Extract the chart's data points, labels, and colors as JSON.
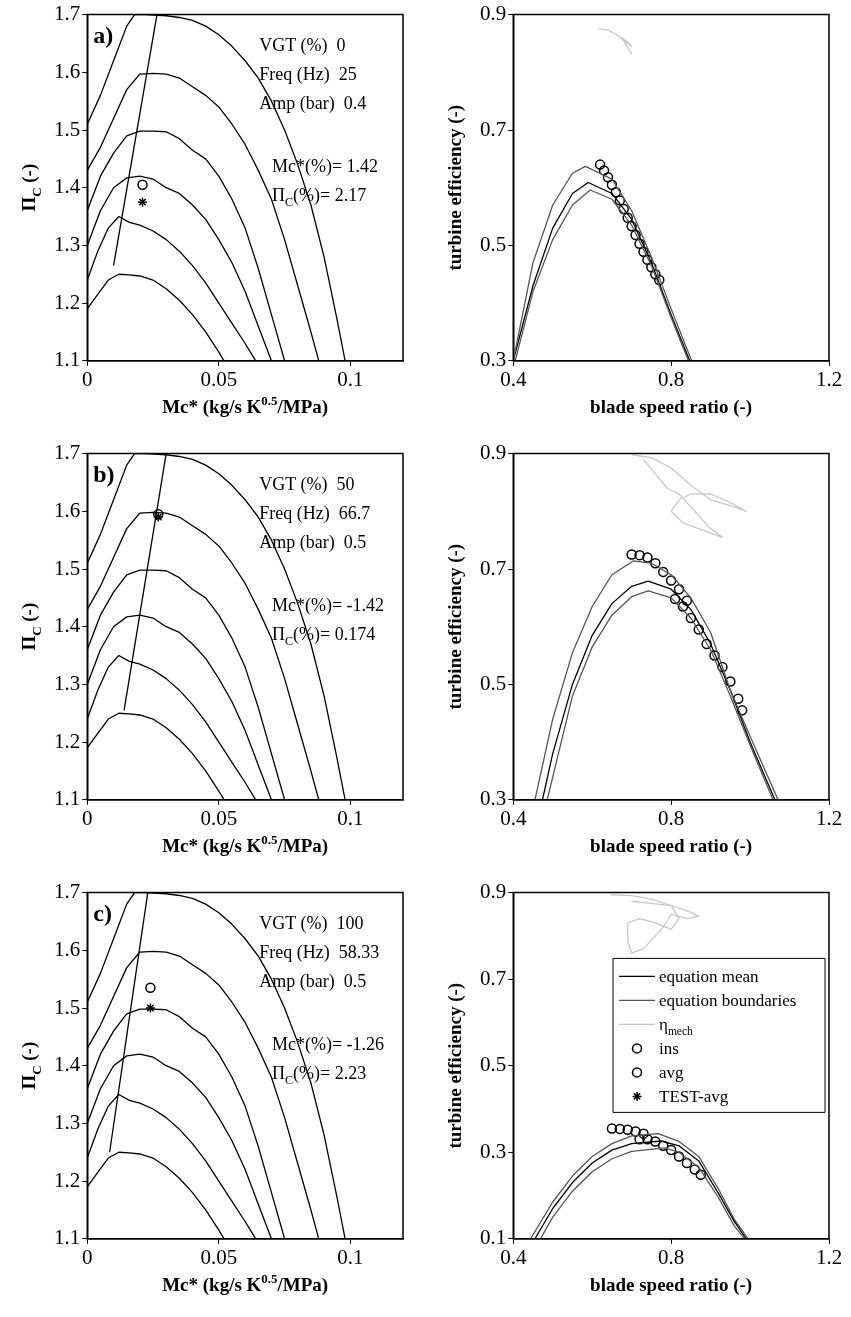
{
  "chart_data": [
    {
      "type": "line",
      "xlabel": "Mc* (kg/s K$^{0.5}$/MPa)",
      "ylabel": "Π$_{C}$ (-)",
      "xlim": [
        0,
        0.12
      ],
      "xticks": [
        0,
        0.05,
        0.1
      ],
      "ylim": [
        1.1,
        1.7
      ],
      "yticks": [
        1.1,
        1.2,
        1.3,
        1.4,
        1.5,
        1.6,
        1.7
      ],
      "grid": false,
      "marker": "none",
      "annotations": [
        "a)",
        "VGT (%)  0",
        "Freq (Hz)  25",
        "Amp (bar)  0.4",
        "Mc*(%)= 1.42",
        "Π$_{C}$(%)= 2.17"
      ],
      "series": [
        {
          "color": "#000000",
          "x": [
            0,
            0.004,
            0.008,
            0.012,
            0.016,
            0.02,
            0.025,
            0.03,
            0.035,
            0.04,
            0.045,
            0.05,
            0.052
          ],
          "values": [
            1.19,
            1.215,
            1.24,
            1.25,
            1.249,
            1.247,
            1.24,
            1.225,
            1.205,
            1.18,
            1.15,
            1.115,
            1.1
          ]
        },
        {
          "color": "#000000",
          "x": [
            0,
            0.004,
            0.008,
            0.012,
            0.016,
            0.02,
            0.025,
            0.03,
            0.035,
            0.04,
            0.045,
            0.05,
            0.055,
            0.06,
            0.064
          ],
          "values": [
            1.24,
            1.29,
            1.33,
            1.35,
            1.34,
            1.335,
            1.325,
            1.31,
            1.29,
            1.265,
            1.235,
            1.2,
            1.165,
            1.13,
            1.1
          ]
        },
        {
          "color": "#000000",
          "x": [
            0,
            0.005,
            0.01,
            0.015,
            0.02,
            0.025,
            0.03,
            0.035,
            0.04,
            0.045,
            0.05,
            0.055,
            0.06,
            0.065,
            0.07
          ],
          "values": [
            1.3,
            1.36,
            1.4,
            1.417,
            1.42,
            1.415,
            1.4,
            1.39,
            1.37,
            1.345,
            1.31,
            1.27,
            1.22,
            1.16,
            1.1
          ]
        },
        {
          "color": "#000000",
          "x": [
            0,
            0.005,
            0.01,
            0.015,
            0.02,
            0.025,
            0.03,
            0.035,
            0.04,
            0.045,
            0.05,
            0.055,
            0.06,
            0.065,
            0.07,
            0.075
          ],
          "values": [
            1.36,
            1.42,
            1.46,
            1.49,
            1.498,
            1.498,
            1.497,
            1.485,
            1.465,
            1.45,
            1.42,
            1.38,
            1.33,
            1.26,
            1.18,
            1.1
          ]
        },
        {
          "color": "#000000",
          "x": [
            0,
            0.005,
            0.01,
            0.015,
            0.02,
            0.025,
            0.03,
            0.035,
            0.04,
            0.045,
            0.05,
            0.055,
            0.06,
            0.065,
            0.07,
            0.075,
            0.08,
            0.085,
            0.088
          ],
          "values": [
            1.43,
            1.47,
            1.52,
            1.57,
            1.597,
            1.598,
            1.597,
            1.59,
            1.575,
            1.56,
            1.54,
            1.51,
            1.475,
            1.43,
            1.38,
            1.31,
            1.23,
            1.15,
            1.1
          ]
        },
        {
          "color": "#000000",
          "x": [
            0,
            0.005,
            0.01,
            0.015,
            0.018,
            0.022,
            0.03,
            0.035,
            0.04,
            0.045,
            0.05,
            0.055,
            0.06,
            0.065,
            0.07,
            0.075,
            0.08,
            0.085,
            0.09,
            0.095,
            0.098
          ],
          "values": [
            1.51,
            1.56,
            1.62,
            1.68,
            1.7,
            1.7,
            1.698,
            1.695,
            1.69,
            1.68,
            1.665,
            1.645,
            1.62,
            1.59,
            1.55,
            1.5,
            1.44,
            1.37,
            1.28,
            1.17,
            1.1
          ]
        },
        {
          "color": "#000000",
          "x": [
            0.01,
            0.0265
          ],
          "values": [
            1.265,
            1.7
          ]
        },
        {
          "name": "avg",
          "type": "scatter",
          "marker": "circle",
          "color": "#000000",
          "x": [
            0.021
          ],
          "values": [
            1.405
          ]
        },
        {
          "name": "TEST-avg",
          "type": "scatter",
          "marker": "cross",
          "color": "#000000",
          "x": [
            0.021
          ],
          "values": [
            1.375
          ]
        }
      ]
    },
    {
      "type": "line",
      "xlabel": "blade speed ratio (-)",
      "ylabel": "turbine efficiency (-)",
      "xlim": [
        0.4,
        1.2
      ],
      "xticks": [
        0.4,
        0.8,
        1.2
      ],
      "ylim": [
        0.3,
        0.9
      ],
      "yticks": [
        0.3,
        0.5,
        0.7,
        0.9
      ],
      "grid": false,
      "marker": "none",
      "series": [
        {
          "color": "#555555",
          "x": [
            0.4,
            0.45,
            0.5,
            0.55,
            0.583,
            0.65,
            0.7,
            0.75,
            0.8,
            0.852
          ],
          "values": [
            0.3,
            0.47,
            0.57,
            0.625,
            0.637,
            0.615,
            0.56,
            0.48,
            0.39,
            0.3
          ]
        },
        {
          "color": "#555555",
          "x": [
            0.405,
            0.45,
            0.5,
            0.55,
            0.595,
            0.65,
            0.7,
            0.75,
            0.8,
            0.844
          ],
          "values": [
            0.3,
            0.42,
            0.51,
            0.57,
            0.596,
            0.58,
            0.535,
            0.465,
            0.375,
            0.3
          ]
        },
        {
          "color": "#000000",
          "x": [
            0.4,
            0.45,
            0.5,
            0.55,
            0.59,
            0.65,
            0.7,
            0.75,
            0.8,
            0.847
          ],
          "values": [
            0.3,
            0.43,
            0.53,
            0.59,
            0.609,
            0.59,
            0.545,
            0.47,
            0.38,
            0.3
          ]
        },
        {
          "color": "#c8c8c8",
          "x": [
            0.615,
            0.64,
            0.66,
            0.68,
            0.69,
            0.7,
            0.69,
            0.675,
            0.695,
            0.7
          ],
          "values": [
            0.876,
            0.873,
            0.866,
            0.855,
            0.85,
            0.845,
            0.852,
            0.86,
            0.838,
            0.832
          ]
        },
        {
          "type": "scatter",
          "marker": "circle",
          "color": "#000000",
          "x": [
            0.62,
            0.63,
            0.64,
            0.65,
            0.66,
            0.67,
            0.68,
            0.69,
            0.7,
            0.71,
            0.72,
            0.73,
            0.74,
            0.75,
            0.76,
            0.77
          ],
          "values": [
            0.64,
            0.63,
            0.618,
            0.605,
            0.592,
            0.578,
            0.563,
            0.548,
            0.533,
            0.518,
            0.503,
            0.489,
            0.475,
            0.462,
            0.45,
            0.44
          ]
        }
      ]
    },
    {
      "type": "line",
      "xlabel": "Mc* (kg/s K$^{0.5}$/MPa)",
      "ylabel": "Π$_{C}$ (-)",
      "xlim": [
        0,
        0.12
      ],
      "xticks": [
        0,
        0.05,
        0.1
      ],
      "ylim": [
        1.1,
        1.7
      ],
      "yticks": [
        1.1,
        1.2,
        1.3,
        1.4,
        1.5,
        1.6,
        1.7
      ],
      "grid": false,
      "marker": "none",
      "annotations": [
        "b)",
        "VGT (%)  50",
        "Freq (Hz)  66.7",
        "Amp (bar)  0.5",
        "Mc*(%)= -1.42",
        "Π$_{C}$(%)= 0.174"
      ],
      "series": [
        {
          "color": "#000000",
          "x": [
            0,
            0.004,
            0.008,
            0.012,
            0.016,
            0.02,
            0.025,
            0.03,
            0.035,
            0.04,
            0.045,
            0.05,
            0.052
          ],
          "values": [
            1.19,
            1.215,
            1.24,
            1.25,
            1.249,
            1.247,
            1.24,
            1.225,
            1.205,
            1.18,
            1.15,
            1.115,
            1.1
          ]
        },
        {
          "color": "#000000",
          "x": [
            0,
            0.004,
            0.008,
            0.012,
            0.016,
            0.02,
            0.025,
            0.03,
            0.035,
            0.04,
            0.045,
            0.05,
            0.055,
            0.06,
            0.064
          ],
          "values": [
            1.24,
            1.29,
            1.33,
            1.35,
            1.34,
            1.335,
            1.325,
            1.31,
            1.29,
            1.265,
            1.235,
            1.2,
            1.165,
            1.13,
            1.1
          ]
        },
        {
          "color": "#000000",
          "x": [
            0,
            0.005,
            0.01,
            0.015,
            0.02,
            0.025,
            0.03,
            0.035,
            0.04,
            0.045,
            0.05,
            0.055,
            0.06,
            0.065,
            0.07
          ],
          "values": [
            1.3,
            1.36,
            1.4,
            1.417,
            1.42,
            1.415,
            1.4,
            1.39,
            1.37,
            1.345,
            1.31,
            1.27,
            1.22,
            1.16,
            1.1
          ]
        },
        {
          "color": "#000000",
          "x": [
            0,
            0.005,
            0.01,
            0.015,
            0.02,
            0.025,
            0.03,
            0.035,
            0.04,
            0.045,
            0.05,
            0.055,
            0.06,
            0.065,
            0.07,
            0.075
          ],
          "values": [
            1.36,
            1.42,
            1.46,
            1.49,
            1.498,
            1.498,
            1.497,
            1.485,
            1.465,
            1.45,
            1.42,
            1.38,
            1.33,
            1.26,
            1.18,
            1.1
          ]
        },
        {
          "color": "#000000",
          "x": [
            0,
            0.005,
            0.01,
            0.015,
            0.02,
            0.025,
            0.03,
            0.035,
            0.04,
            0.045,
            0.05,
            0.055,
            0.06,
            0.065,
            0.07,
            0.075,
            0.08,
            0.085,
            0.088
          ],
          "values": [
            1.43,
            1.47,
            1.52,
            1.57,
            1.597,
            1.598,
            1.597,
            1.59,
            1.575,
            1.56,
            1.54,
            1.51,
            1.475,
            1.43,
            1.38,
            1.31,
            1.23,
            1.15,
            1.1
          ]
        },
        {
          "color": "#000000",
          "x": [
            0,
            0.005,
            0.01,
            0.015,
            0.018,
            0.022,
            0.03,
            0.035,
            0.04,
            0.045,
            0.05,
            0.055,
            0.06,
            0.065,
            0.07,
            0.075,
            0.08,
            0.085,
            0.09,
            0.095,
            0.098
          ],
          "values": [
            1.51,
            1.56,
            1.62,
            1.68,
            1.7,
            1.7,
            1.698,
            1.695,
            1.69,
            1.68,
            1.665,
            1.645,
            1.62,
            1.59,
            1.55,
            1.5,
            1.44,
            1.37,
            1.28,
            1.17,
            1.1
          ]
        },
        {
          "color": "#000000",
          "x": [
            0.014,
            0.03
          ],
          "values": [
            1.255,
            1.7
          ]
        },
        {
          "type": "scatter",
          "marker": "circle",
          "color": "#000000",
          "x": [
            0.027
          ],
          "values": [
            1.595
          ]
        },
        {
          "type": "scatter",
          "marker": "cross",
          "color": "#000000",
          "x": [
            0.027
          ],
          "values": [
            1.59
          ]
        }
      ]
    },
    {
      "type": "line",
      "xlabel": "blade speed ratio (-)",
      "ylabel": "turbine efficiency (-)",
      "xlim": [
        0.4,
        1.2
      ],
      "xticks": [
        0.4,
        0.8,
        1.2
      ],
      "ylim": [
        0.3,
        0.9
      ],
      "yticks": [
        0.3,
        0.5,
        0.7,
        0.9
      ],
      "grid": false,
      "marker": "none",
      "series": [
        {
          "color": "#555555",
          "x": [
            0.455,
            0.5,
            0.55,
            0.6,
            0.65,
            0.704,
            0.75,
            0.8,
            0.85,
            0.9,
            0.95,
            1.0,
            1.071
          ],
          "values": [
            0.3,
            0.44,
            0.555,
            0.635,
            0.69,
            0.714,
            0.71,
            0.69,
            0.65,
            0.59,
            0.49,
            0.41,
            0.3
          ]
        },
        {
          "color": "#555555",
          "x": [
            0.486,
            0.55,
            0.6,
            0.65,
            0.7,
            0.742,
            0.8,
            0.85,
            0.9,
            0.95,
            1.0,
            1.058
          ],
          "values": [
            0.3,
            0.48,
            0.565,
            0.62,
            0.652,
            0.662,
            0.65,
            0.615,
            0.56,
            0.48,
            0.395,
            0.3
          ]
        },
        {
          "color": "#000000",
          "x": [
            0.474,
            0.5,
            0.55,
            0.6,
            0.65,
            0.7,
            0.742,
            0.8,
            0.85,
            0.9,
            0.95,
            1.0,
            1.063
          ],
          "values": [
            0.3,
            0.38,
            0.5,
            0.585,
            0.64,
            0.67,
            0.679,
            0.665,
            0.63,
            0.57,
            0.49,
            0.4,
            0.3
          ]
        },
        {
          "color": "#c8c8c8",
          "x": [
            0.7,
            0.75,
            0.8,
            0.85,
            0.9,
            0.95,
            0.99,
            0.95,
            0.9,
            0.85,
            0.82,
            0.8,
            0.83,
            0.87,
            0.93,
            0.9,
            0.86,
            0.82,
            0.79,
            0.76,
            0.73
          ],
          "values": [
            0.898,
            0.893,
            0.875,
            0.845,
            0.82,
            0.81,
            0.8,
            0.815,
            0.83,
            0.83,
            0.82,
            0.8,
            0.78,
            0.77,
            0.755,
            0.77,
            0.8,
            0.83,
            0.84,
            0.865,
            0.89
          ]
        },
        {
          "type": "scatter",
          "marker": "circle",
          "color": "#000000",
          "x": [
            0.7,
            0.72,
            0.74,
            0.76,
            0.78,
            0.8,
            0.82,
            0.84,
            0.81,
            0.83,
            0.85,
            0.87,
            0.89,
            0.91,
            0.93,
            0.95,
            0.97,
            0.98
          ],
          "values": [
            0.725,
            0.724,
            0.72,
            0.71,
            0.695,
            0.68,
            0.665,
            0.645,
            0.648,
            0.635,
            0.615,
            0.595,
            0.57,
            0.55,
            0.53,
            0.505,
            0.475,
            0.455
          ]
        }
      ]
    },
    {
      "type": "line",
      "xlabel": "Mc* (kg/s K$^{0.5}$/MPa)",
      "ylabel": "Π$_{C}$ (-)",
      "xlim": [
        0,
        0.12
      ],
      "xticks": [
        0,
        0.05,
        0.1
      ],
      "ylim": [
        1.1,
        1.7
      ],
      "yticks": [
        1.1,
        1.2,
        1.3,
        1.4,
        1.5,
        1.6,
        1.7
      ],
      "grid": false,
      "marker": "none",
      "annotations": [
        "c)",
        "VGT (%)  100",
        "Freq (Hz)  58.33",
        "Amp (bar)  0.5",
        "Mc*(%)= -1.26",
        "Π$_{C}$(%)= 2.23"
      ],
      "series": [
        {
          "color": "#000000",
          "x": [
            0,
            0.004,
            0.008,
            0.012,
            0.016,
            0.02,
            0.025,
            0.03,
            0.035,
            0.04,
            0.045,
            0.05,
            0.052
          ],
          "values": [
            1.19,
            1.215,
            1.24,
            1.25,
            1.249,
            1.247,
            1.24,
            1.225,
            1.205,
            1.18,
            1.15,
            1.115,
            1.1
          ]
        },
        {
          "color": "#000000",
          "x": [
            0,
            0.004,
            0.008,
            0.012,
            0.016,
            0.02,
            0.025,
            0.03,
            0.035,
            0.04,
            0.045,
            0.05,
            0.055,
            0.06,
            0.064
          ],
          "values": [
            1.24,
            1.29,
            1.33,
            1.35,
            1.34,
            1.335,
            1.325,
            1.31,
            1.29,
            1.265,
            1.235,
            1.2,
            1.165,
            1.13,
            1.1
          ]
        },
        {
          "color": "#000000",
          "x": [
            0,
            0.005,
            0.01,
            0.015,
            0.02,
            0.025,
            0.03,
            0.035,
            0.04,
            0.045,
            0.05,
            0.055,
            0.06,
            0.065,
            0.07
          ],
          "values": [
            1.3,
            1.36,
            1.4,
            1.417,
            1.42,
            1.415,
            1.4,
            1.39,
            1.37,
            1.345,
            1.31,
            1.27,
            1.22,
            1.16,
            1.1
          ]
        },
        {
          "color": "#000000",
          "x": [
            0,
            0.005,
            0.01,
            0.015,
            0.02,
            0.025,
            0.03,
            0.035,
            0.04,
            0.045,
            0.05,
            0.055,
            0.06,
            0.065,
            0.07,
            0.075
          ],
          "values": [
            1.36,
            1.42,
            1.46,
            1.49,
            1.498,
            1.498,
            1.497,
            1.485,
            1.465,
            1.45,
            1.42,
            1.38,
            1.33,
            1.26,
            1.18,
            1.1
          ]
        },
        {
          "color": "#000000",
          "x": [
            0,
            0.005,
            0.01,
            0.015,
            0.02,
            0.025,
            0.03,
            0.035,
            0.04,
            0.045,
            0.05,
            0.055,
            0.06,
            0.065,
            0.07,
            0.075,
            0.08,
            0.085,
            0.088
          ],
          "values": [
            1.43,
            1.47,
            1.52,
            1.57,
            1.597,
            1.598,
            1.597,
            1.59,
            1.575,
            1.56,
            1.54,
            1.51,
            1.475,
            1.43,
            1.38,
            1.31,
            1.23,
            1.15,
            1.1
          ]
        },
        {
          "color": "#000000",
          "x": [
            0,
            0.005,
            0.01,
            0.015,
            0.018,
            0.022,
            0.03,
            0.035,
            0.04,
            0.045,
            0.05,
            0.055,
            0.06,
            0.065,
            0.07,
            0.075,
            0.08,
            0.085,
            0.09,
            0.095,
            0.098
          ],
          "values": [
            1.51,
            1.56,
            1.62,
            1.68,
            1.7,
            1.7,
            1.698,
            1.695,
            1.69,
            1.68,
            1.665,
            1.645,
            1.62,
            1.59,
            1.55,
            1.5,
            1.44,
            1.37,
            1.28,
            1.17,
            1.1
          ]
        },
        {
          "color": "#000000",
          "x": [
            0.0085,
            0.023
          ],
          "values": [
            1.25,
            1.7
          ]
        },
        {
          "type": "scatter",
          "marker": "circle",
          "color": "#000000",
          "x": [
            0.024
          ],
          "values": [
            1.535
          ]
        },
        {
          "type": "scatter",
          "marker": "cross",
          "color": "#000000",
          "x": [
            0.024
          ],
          "values": [
            1.5
          ]
        }
      ]
    },
    {
      "type": "line",
      "xlabel": "blade speed ratio (-)",
      "ylabel": "turbine efficiency (-)",
      "xlim": [
        0.4,
        1.2
      ],
      "xticks": [
        0.4,
        0.8,
        1.2
      ],
      "ylim": [
        0.1,
        0.9
      ],
      "yticks": [
        0.1,
        0.3,
        0.5,
        0.7,
        0.9
      ],
      "grid": false,
      "marker": "none",
      "legend": "top right",
      "series": [
        {
          "name": "equation mean",
          "color": "#000000",
          "x": [
            0.455,
            0.5,
            0.55,
            0.6,
            0.65,
            0.7,
            0.775,
            0.82,
            0.87,
            0.92,
            0.96,
            0.99
          ],
          "values": [
            0.1,
            0.17,
            0.23,
            0.275,
            0.305,
            0.32,
            0.326,
            0.315,
            0.28,
            0.205,
            0.14,
            0.1
          ]
        },
        {
          "name": "equation boundaries",
          "color": "#555555",
          "x": [
            0.444,
            0.5,
            0.55,
            0.6,
            0.65,
            0.7,
            0.767,
            0.82,
            0.87,
            0.92,
            0.96,
            0.995
          ],
          "values": [
            0.1,
            0.185,
            0.245,
            0.29,
            0.32,
            0.338,
            0.343,
            0.325,
            0.29,
            0.215,
            0.145,
            0.1
          ]
        },
        {
          "color": "#555555",
          "x": [
            0.469,
            0.5,
            0.55,
            0.6,
            0.65,
            0.7,
            0.783,
            0.82,
            0.87,
            0.92,
            0.96,
            0.986
          ],
          "values": [
            0.1,
            0.15,
            0.21,
            0.255,
            0.285,
            0.302,
            0.31,
            0.3,
            0.265,
            0.195,
            0.13,
            0.1
          ]
        },
        {
          "name": "η$_{mech}$",
          "color": "#c8c8c8",
          "x": [
            0.647,
            0.7,
            0.75,
            0.8,
            0.85,
            0.87,
            0.84,
            0.8,
            0.78,
            0.76,
            0.73,
            0.7,
            0.69,
            0.69,
            0.72,
            0.76,
            0.8,
            0.82,
            0.8,
            0.75,
            0.7
          ],
          "values": [
            0.895,
            0.893,
            0.885,
            0.87,
            0.855,
            0.845,
            0.84,
            0.85,
            0.82,
            0.8,
            0.77,
            0.76,
            0.79,
            0.83,
            0.84,
            0.83,
            0.815,
            0.84,
            0.87,
            0.875,
            0.88
          ]
        },
        {
          "name": "ins",
          "type": "scatter",
          "marker": "circle",
          "color": "#000000",
          "x": [
            0.65,
            0.67,
            0.69,
            0.71,
            0.73,
            0.72,
            0.74,
            0.76,
            0.78,
            0.8,
            0.82,
            0.84,
            0.86,
            0.875
          ],
          "values": [
            0.355,
            0.354,
            0.352,
            0.348,
            0.343,
            0.33,
            0.33,
            0.325,
            0.315,
            0.305,
            0.29,
            0.275,
            0.26,
            0.248
          ]
        }
      ]
    }
  ]
}
